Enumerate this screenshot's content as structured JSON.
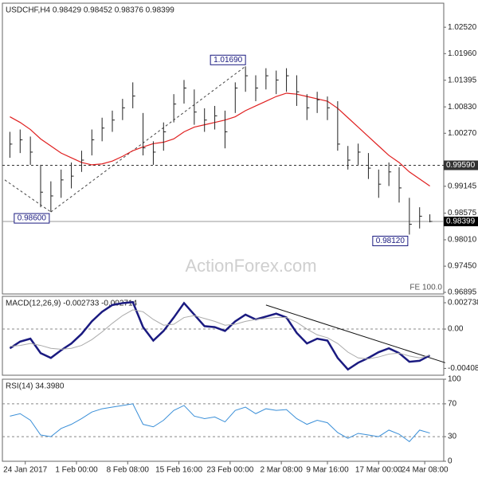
{
  "chart_data": [
    {
      "type": "ohlc",
      "title": "USDCHF,H4  0.98429 0.98452 0.98376 0.98399",
      "watermark": "ActionForex.com",
      "fe_label": "FE 100.0",
      "color": "#222222",
      "high": [
        1.003,
        1.0035,
        1.002,
        0.996,
        0.9925,
        0.995,
        0.9965,
        0.999,
        1.0035,
        1.006,
        1.0075,
        1.01,
        1.0135,
        1.007,
        1.001,
        1.005,
        1.011,
        1.014,
        1.012,
        1.008,
        1.0085,
        1.0075,
        1.0135,
        1.0169,
        1.015,
        1.0165,
        1.016,
        1.0165,
        1.015,
        1.011,
        1.0115,
        1.0105,
        1.0095,
        1.0,
        1.0005,
        0.9985,
        0.995,
        0.9965,
        0.9955,
        0.989,
        0.987,
        0.9855
      ],
      "low": [
        0.9975,
        0.9985,
        0.996,
        0.987,
        0.986,
        0.989,
        0.991,
        0.9945,
        0.998,
        1.001,
        1.003,
        1.0055,
        1.008,
        0.998,
        0.996,
        0.999,
        1.005,
        1.009,
        1.0045,
        1.003,
        1.0035,
        0.9995,
        1.007,
        1.0115,
        1.0095,
        1.012,
        1.011,
        1.0115,
        1.0085,
        1.0055,
        1.007,
        1.0055,
        0.999,
        0.995,
        0.996,
        0.993,
        0.989,
        0.9915,
        0.988,
        0.9812,
        0.9825,
        0.9838
      ],
      "close": [
        1.0004,
        1.0013,
        0.9987,
        0.9902,
        0.9894,
        0.9928,
        0.9936,
        0.997,
        1.0013,
        1.0038,
        1.0055,
        1.0081,
        1.0106,
        0.9996,
        0.9987,
        1.003,
        1.0089,
        1.0123,
        1.0072,
        1.0055,
        1.0064,
        1.003,
        1.0123,
        1.0149,
        1.0123,
        1.0149,
        1.014,
        1.0149,
        1.0115,
        1.0081,
        1.0098,
        1.0081,
        1.0004,
        0.997,
        0.9987,
        0.9953,
        0.9919,
        0.9945,
        0.9911,
        0.9834,
        0.9851,
        0.98399
      ],
      "ma": {
        "color": "#e02020",
        "values": [
          1.0062,
          1.005,
          1.0035,
          1.0015,
          1.0,
          0.9985,
          0.9975,
          0.9965,
          0.996,
          0.9962,
          0.9968,
          0.9978,
          0.999,
          0.9998,
          1.0005,
          1.0008,
          1.0015,
          1.003,
          1.004,
          1.0045,
          1.005,
          1.0055,
          1.0062,
          1.0075,
          1.0085,
          1.0095,
          1.0105,
          1.0112,
          1.011,
          1.0105,
          1.01,
          1.0095,
          1.008,
          1.006,
          1.004,
          1.002,
          1.0,
          0.998,
          0.9965,
          0.9945,
          0.993,
          0.9915
        ]
      },
      "ylim": [
        0.9686,
        1.0303
      ],
      "yticks": [
        {
          "value": 1.0252,
          "label": "1.02520"
        },
        {
          "value": 1.0196,
          "label": "1.01960"
        },
        {
          "value": 1.01395,
          "label": "1.01395"
        },
        {
          "value": 1.0083,
          "label": "1.00830"
        },
        {
          "value": 1.0027,
          "label": "1.00270"
        },
        {
          "value": 0.99145,
          "label": "0.99145"
        },
        {
          "value": 0.98575,
          "label": "0.98575"
        },
        {
          "value": 0.9801,
          "label": "0.98010"
        },
        {
          "value": 0.9745,
          "label": "0.97450"
        },
        {
          "value": 0.96895,
          "label": "0.96895"
        }
      ],
      "levels": [
        {
          "value": 0.9959,
          "label": "0.99590",
          "style": "dashed"
        },
        {
          "value": 0.98399,
          "label": "0.98399",
          "style": "current"
        }
      ],
      "annotations": [
        {
          "x": 23,
          "value": 1.0169,
          "label": "1.01690"
        },
        {
          "x": 4,
          "value": 0.986,
          "label": "0.98600"
        },
        {
          "x": 39,
          "value": 0.9812,
          "label": "0.98120"
        }
      ],
      "trendlines": [
        {
          "x": [
            -0.5,
            4
          ],
          "y": [
            0.9928,
            0.986
          ]
        },
        {
          "x": [
            4,
            23
          ],
          "y": [
            0.986,
            1.0169
          ]
        }
      ],
      "xticks": [
        {
          "value": 1.5,
          "label": "24 Jan 2017"
        },
        {
          "value": 6.5,
          "label": "1 Feb 00:00"
        },
        {
          "value": 11.5,
          "label": "8 Feb 08:00"
        },
        {
          "value": 16.5,
          "label": "15 Feb 16:00"
        },
        {
          "value": 21.5,
          "label": "23 Feb 00:00"
        },
        {
          "value": 26.5,
          "label": "2 Mar 08:00"
        },
        {
          "value": 31,
          "label": "9 Mar 16:00"
        },
        {
          "value": 36,
          "label": "17 Mar 00:00"
        },
        {
          "value": 40.5,
          "label": "24 Mar 08:00"
        }
      ]
    },
    {
      "type": "line",
      "title": "MACD(12,26,9) -0.002733 -0.002714",
      "grid": true,
      "series": [
        {
          "color": "#1a1a80",
          "width": 2.5,
          "values": [
            -0.002,
            -0.0013,
            -0.001,
            -0.0025,
            -0.003,
            -0.0022,
            -0.0015,
            -0.0005,
            0.0008,
            0.0018,
            0.0025,
            0.0027,
            0.0028,
            0.0002,
            -0.0012,
            -0.0002,
            0.0012,
            0.0027,
            0.0015,
            0.0003,
            0.0002,
            -0.0002,
            0.0008,
            0.0015,
            0.001,
            0.0013,
            0.0016,
            0.0012,
            -0.0004,
            -0.0015,
            -0.001,
            -0.0012,
            -0.003,
            -0.0042,
            -0.0035,
            -0.003,
            -0.0024,
            -0.002,
            -0.0025,
            -0.0034,
            -0.0033,
            -0.002733
          ]
        },
        {
          "color": "#aaaaaa",
          "width": 1,
          "values": [
            -0.0018,
            -0.0017,
            -0.0015,
            -0.0017,
            -0.002,
            -0.0021,
            -0.002,
            -0.0017,
            -0.0011,
            -0.0003,
            0.0006,
            0.0014,
            0.002,
            0.0018,
            0.001,
            0.0004,
            0.0005,
            0.0012,
            0.0014,
            0.0011,
            0.0008,
            0.0004,
            0.0005,
            0.0008,
            0.001,
            0.0011,
            0.0012,
            0.0012,
            0.0007,
            0.0,
            -0.0006,
            -0.0009,
            -0.0015,
            -0.0024,
            -0.003,
            -0.0031,
            -0.0029,
            -0.0026,
            -0.0025,
            -0.0028,
            -0.003,
            -0.002714
          ]
        }
      ],
      "trendlines": [
        {
          "x": [
            25,
            42.5
          ],
          "y": [
            0.0025,
            -0.0035
          ]
        }
      ],
      "ylim": [
        -0.0048,
        0.0034
      ],
      "yticks": [
        0.002738,
        {
          "value": 0,
          "label": "0.00"
        },
        -0.004088
      ]
    },
    {
      "type": "line",
      "title": "RSI(14) 34.3980",
      "grid": true,
      "series": [
        {
          "color": "#3a8fd8",
          "width": 1,
          "values": [
            55,
            58,
            50,
            32,
            30,
            40,
            45,
            52,
            60,
            64,
            66,
            68,
            70,
            45,
            42,
            50,
            62,
            68,
            55,
            52,
            54,
            48,
            62,
            66,
            58,
            64,
            62,
            63,
            52,
            45,
            50,
            47,
            35,
            28,
            34,
            32,
            30,
            38,
            33,
            24,
            38,
            34.398
          ]
        }
      ],
      "ylim": [
        0,
        100
      ],
      "yticks": [
        100,
        70,
        30,
        0
      ]
    }
  ]
}
